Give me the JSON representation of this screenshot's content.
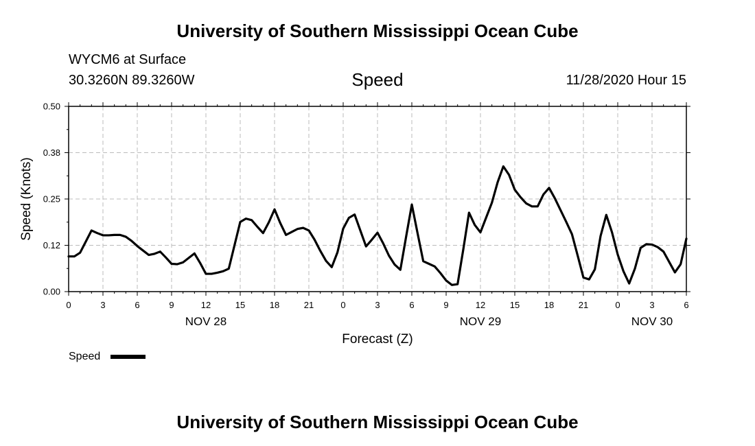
{
  "header": {
    "title": "University of Southern Mississippi Ocean Cube",
    "station": "WYCM6 at Surface",
    "coords": "30.3260N 89.3260W",
    "variable": "Speed",
    "timestamp": "11/28/2020 Hour 15"
  },
  "footer": {
    "title": "University of Southern Mississippi Ocean Cube"
  },
  "chart_data": {
    "type": "line",
    "xlabel": "Forecast (Z)",
    "ylabel": "Speed (Knots)",
    "ylim": [
      0,
      0.5
    ],
    "yticks": [
      "0.00",
      "0.12",
      "0.25",
      "0.38",
      "0.50"
    ],
    "xlim": [
      0,
      54
    ],
    "x_unit": "hours (Z) from 11/28/2020 00Z",
    "xtick_labels": [
      "0",
      "3",
      "6",
      "9",
      "12",
      "15",
      "18",
      "21",
      "0",
      "3",
      "6",
      "9",
      "12",
      "15",
      "18",
      "21",
      "0",
      "3",
      "6"
    ],
    "date_labels": [
      {
        "label": "NOV 28",
        "hour": 12
      },
      {
        "label": "NOV 29",
        "hour": 36
      },
      {
        "label": "NOV 30",
        "hour": 51
      }
    ],
    "grid": true,
    "legend": {
      "position": "bottom-left",
      "entries": [
        "Speed"
      ]
    },
    "series": [
      {
        "name": "Speed",
        "color": "#000000",
        "x": [
          0,
          0.5,
          1,
          1.5,
          2,
          2.5,
          3,
          3.5,
          4,
          4.5,
          5,
          5.5,
          6,
          6.5,
          7,
          7.5,
          8,
          8.5,
          9,
          9.5,
          10,
          10.5,
          11,
          11.5,
          12,
          12.5,
          13,
          13.5,
          14,
          14.5,
          15,
          15.5,
          16,
          16.5,
          17,
          17.5,
          18,
          18.5,
          19,
          19.5,
          20,
          20.5,
          21,
          21.5,
          22,
          22.5,
          23,
          23.5,
          24,
          24.5,
          25,
          25.5,
          26,
          26.5,
          27,
          27.5,
          28,
          28.5,
          29,
          29.5,
          30,
          30.5,
          31,
          31.5,
          32,
          32.5,
          33,
          33.5,
          34,
          34.5,
          35,
          35.5,
          36,
          36.5,
          37,
          37.5,
          38,
          38.5,
          39,
          39.5,
          40,
          40.5,
          41,
          41.5,
          42,
          42.5,
          43,
          43.5,
          44,
          44.5,
          45,
          45.5,
          46,
          46.5,
          47,
          47.5,
          48,
          48.5,
          49,
          49.5,
          50,
          50.5,
          51,
          51.5,
          52,
          52.5,
          53,
          53.5,
          54
        ],
        "values": [
          0.095,
          0.095,
          0.105,
          0.135,
          0.165,
          0.158,
          0.152,
          0.152,
          0.153,
          0.153,
          0.148,
          0.137,
          0.123,
          0.111,
          0.099,
          0.102,
          0.108,
          0.092,
          0.075,
          0.074,
          0.079,
          0.091,
          0.103,
          0.077,
          0.048,
          0.048,
          0.051,
          0.055,
          0.062,
          0.125,
          0.188,
          0.197,
          0.193,
          0.175,
          0.158,
          0.187,
          0.222,
          0.185,
          0.153,
          0.161,
          0.169,
          0.172,
          0.165,
          0.14,
          0.11,
          0.083,
          0.066,
          0.106,
          0.17,
          0.199,
          0.208,
          0.165,
          0.122,
          0.14,
          0.159,
          0.13,
          0.097,
          0.073,
          0.059,
          0.148,
          0.235,
          0.158,
          0.082,
          0.075,
          0.068,
          0.05,
          0.03,
          0.018,
          0.02,
          0.114,
          0.213,
          0.18,
          0.16,
          0.2,
          0.24,
          0.295,
          0.338,
          0.315,
          0.275,
          0.255,
          0.238,
          0.23,
          0.23,
          0.262,
          0.28,
          0.252,
          0.22,
          0.188,
          0.155,
          0.097,
          0.038,
          0.033,
          0.06,
          0.15,
          0.207,
          0.16,
          0.1,
          0.055,
          0.022,
          0.062,
          0.118,
          0.128,
          0.127,
          0.12,
          0.108,
          0.08,
          0.052,
          0.074,
          0.143
        ]
      }
    ]
  }
}
